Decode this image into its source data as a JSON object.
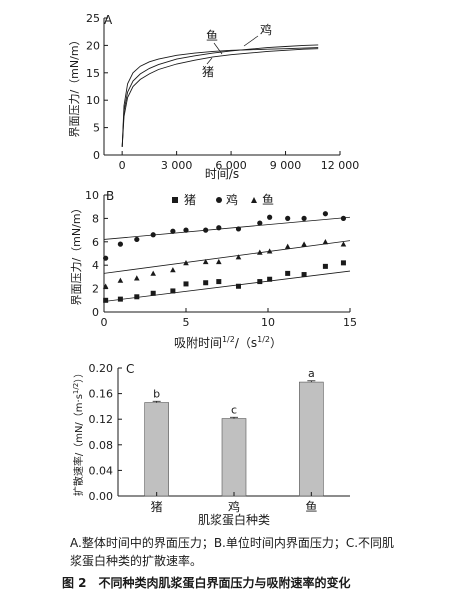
{
  "chart_data": [
    {
      "panel": "A",
      "type": "line",
      "xlabel": "时间/s",
      "ylabel": "界面压力/（mN/m）",
      "xlim": [
        -1000,
        12000
      ],
      "ylim": [
        0,
        25
      ],
      "xticks": [
        0,
        3000,
        6000,
        9000,
        12000
      ],
      "xtick_labels": [
        "0",
        "3 000",
        "6 000",
        "9 000",
        "12 000"
      ],
      "yticks": [
        0,
        5,
        10,
        15,
        20,
        25
      ],
      "ytick_labels": [
        "0",
        "5",
        "10",
        "15",
        "20",
        "25"
      ],
      "series": [
        {
          "name": "鱼",
          "x": [
            0,
            100,
            300,
            600,
            1000,
            1500,
            2000,
            3000,
            4000,
            5000,
            6000,
            7000,
            8000,
            9000,
            10000,
            10800
          ],
          "values": [
            1.5,
            9,
            13,
            15,
            16.2,
            17,
            17.5,
            18.2,
            18.6,
            18.9,
            19.1,
            19.2,
            19.3,
            19.4,
            19.5,
            19.6
          ]
        },
        {
          "name": "鸡",
          "x": [
            0,
            100,
            300,
            600,
            1000,
            1500,
            2000,
            3000,
            4000,
            5000,
            6000,
            7000,
            8000,
            9000,
            10000,
            10800
          ],
          "values": [
            1.5,
            8,
            11.5,
            13.5,
            14.8,
            15.8,
            16.5,
            17.5,
            18.1,
            18.6,
            19.0,
            19.3,
            19.6,
            19.8,
            20.0,
            20.1
          ]
        },
        {
          "name": "猪",
          "x": [
            0,
            100,
            300,
            600,
            1000,
            1500,
            2000,
            3000,
            4000,
            5000,
            6000,
            7000,
            8000,
            9000,
            10000,
            10800
          ],
          "values": [
            1.5,
            7,
            10.5,
            12.5,
            13.8,
            14.8,
            15.6,
            16.6,
            17.3,
            17.9,
            18.3,
            18.6,
            18.9,
            19.1,
            19.3,
            19.4
          ]
        }
      ]
    },
    {
      "panel": "B",
      "type": "scatter",
      "xlabel": "吸附时间1/2/（s1/2）",
      "ylabel": "界面压力/（mN/m）",
      "xlim": [
        0,
        15
      ],
      "ylim": [
        0,
        10
      ],
      "xticks": [
        0,
        5,
        10,
        15
      ],
      "yticks": [
        0,
        2,
        4,
        6,
        8,
        10
      ],
      "legend": [
        "猪",
        "鸡",
        "鱼"
      ],
      "series": [
        {
          "name": "猪",
          "marker": "square",
          "x": [
            0.1,
            1,
            2,
            3,
            4.2,
            5,
            6.2,
            7,
            8.2,
            9.5,
            10.1,
            11.2,
            12.2,
            13.5,
            14.6
          ],
          "values": [
            1.0,
            1.1,
            1.3,
            1.6,
            1.8,
            2.4,
            2.5,
            2.6,
            2.2,
            2.6,
            2.8,
            3.3,
            3.2,
            3.9,
            4.2
          ],
          "fit": [
            [
              0,
              0.9
            ],
            [
              15,
              3.5
            ]
          ]
        },
        {
          "name": "鸡",
          "marker": "circle",
          "x": [
            0.1,
            1,
            2,
            3,
            4.2,
            5,
            6.2,
            7,
            8.2,
            9.5,
            10.1,
            11.2,
            12.2,
            13.5,
            14.6
          ],
          "values": [
            4.6,
            5.8,
            6.2,
            6.6,
            6.9,
            7.0,
            7.0,
            7.2,
            7.1,
            7.6,
            8.1,
            8.0,
            8.0,
            8.4,
            8.0
          ],
          "fit": [
            [
              0,
              6.2
            ],
            [
              15,
              8.1
            ]
          ]
        },
        {
          "name": "鱼",
          "marker": "triangle",
          "x": [
            0.1,
            1,
            2,
            3,
            4.2,
            5,
            6.2,
            7,
            8.2,
            9.5,
            10.1,
            11.2,
            12.2,
            13.5,
            14.6
          ],
          "values": [
            2.2,
            2.7,
            2.9,
            3.3,
            3.6,
            4.2,
            4.3,
            4.3,
            4.7,
            5.1,
            5.2,
            5.6,
            5.8,
            6.0,
            5.8
          ],
          "fit": [
            [
              0,
              3.3
            ],
            [
              15,
              6.1
            ]
          ]
        }
      ]
    },
    {
      "panel": "C",
      "type": "bar",
      "xlabel": "肌浆蛋白种类",
      "ylabel": "扩散速率/（mN/（m·s1/2））",
      "ylim": [
        0,
        0.2
      ],
      "yticks": [
        0,
        0.04,
        0.08,
        0.12,
        0.16,
        0.2
      ],
      "ytick_labels": [
        "0.00",
        "0.04",
        "0.08",
        "0.12",
        "0.16",
        "0.20"
      ],
      "categories": [
        "猪",
        "鸡",
        "鱼"
      ],
      "values": [
        0.146,
        0.121,
        0.178
      ],
      "errors": [
        0.002,
        0.002,
        0.002
      ],
      "significance": [
        "b",
        "c",
        "a"
      ],
      "bar_color": "#c0c0c0"
    }
  ],
  "caption": "A.整体时间中的界面压力；B.单位时间内界面压力；C.不同肌浆蛋白种类的扩散速率。",
  "figure_title": "图 2　不同种类肉肌浆蛋白界面压力与吸附速率的变化"
}
